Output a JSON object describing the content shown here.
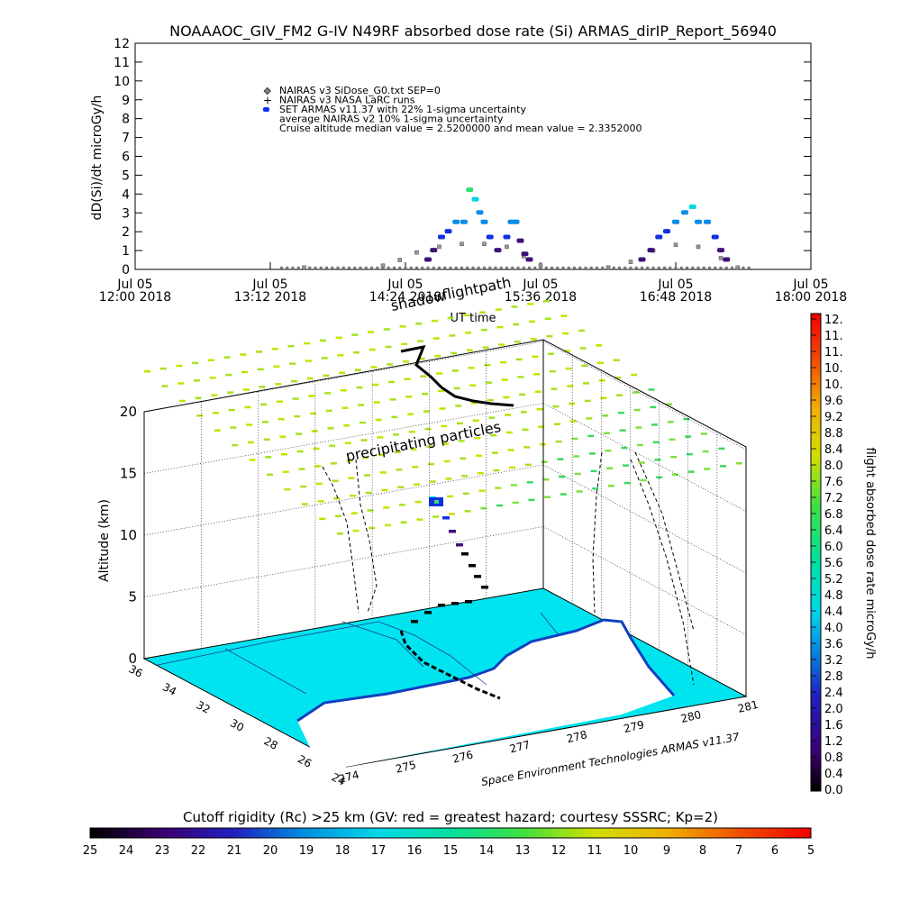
{
  "title": "NOAAAOC_GIV_FM2 G-IV   N49RF  absorbed dose rate (Si) ARMAS_dirIP_Report_56940",
  "chart_data": [
    {
      "type": "scatter",
      "ylabel": "dD(Si)/dt microGy/h",
      "xlabel": "UT time",
      "ylim": [
        0,
        12
      ],
      "yticks": [
        "0",
        "1",
        "2",
        "3",
        "4",
        "5",
        "6",
        "7",
        "8",
        "9",
        "10",
        "11",
        "12"
      ],
      "xticks": [
        {
          "l1": "Jul 05",
          "l2": "12:00 2018"
        },
        {
          "l1": "Jul 05",
          "l2": "13:12 2018"
        },
        {
          "l1": "Jul 05",
          "l2": "14:24 2018"
        },
        {
          "l1": "Jul 05",
          "l2": "15:36 2018"
        },
        {
          "l1": "Jul 05",
          "l2": "16:48 2018"
        },
        {
          "l1": "Jul 05",
          "l2": "18:00 2018"
        }
      ],
      "legend": [
        "NAIRAS v3 SiDose_G0.txt SEP=0",
        "NAIRAS v3 NASA LaRC runs",
        "SET ARMAS v11.37 with 22% 1-sigma uncertainty",
        "average NAIRAS v2 10% 1-sigma uncertainty",
        "Cruise altitude median value = 2.5200000 and mean value = 2.3352000"
      ],
      "legend_position": "top-left",
      "nairas_baseline": [
        {
          "t": 13.5,
          "v": 0.1
        },
        {
          "t": 14.2,
          "v": 0.2
        },
        {
          "t": 14.35,
          "v": 0.5
        },
        {
          "t": 14.5,
          "v": 0.9
        },
        {
          "t": 14.7,
          "v": 1.2
        },
        {
          "t": 14.9,
          "v": 1.35
        },
        {
          "t": 15.1,
          "v": 1.35
        },
        {
          "t": 15.3,
          "v": 1.2
        },
        {
          "t": 15.45,
          "v": 0.7
        },
        {
          "t": 15.6,
          "v": 0.2
        },
        {
          "t": 16.2,
          "v": 0.1
        },
        {
          "t": 16.4,
          "v": 0.4
        },
        {
          "t": 16.6,
          "v": 1.0
        },
        {
          "t": 16.8,
          "v": 1.3
        },
        {
          "t": 17.0,
          "v": 1.2
        },
        {
          "t": 17.2,
          "v": 0.6
        },
        {
          "t": 17.35,
          "v": 0.1
        }
      ],
      "armas_points": [
        {
          "t": 14.6,
          "v": 0.5
        },
        {
          "t": 14.65,
          "v": 1.0
        },
        {
          "t": 14.72,
          "v": 1.7
        },
        {
          "t": 14.78,
          "v": 2.0
        },
        {
          "t": 14.85,
          "v": 2.5
        },
        {
          "t": 14.92,
          "v": 2.5
        },
        {
          "t": 14.97,
          "v": 4.2
        },
        {
          "t": 15.02,
          "v": 3.7
        },
        {
          "t": 15.06,
          "v": 3.0
        },
        {
          "t": 15.1,
          "v": 2.5
        },
        {
          "t": 15.15,
          "v": 1.7
        },
        {
          "t": 15.22,
          "v": 1.0
        },
        {
          "t": 15.3,
          "v": 1.7
        },
        {
          "t": 15.34,
          "v": 2.5
        },
        {
          "t": 15.38,
          "v": 2.5
        },
        {
          "t": 15.42,
          "v": 1.5
        },
        {
          "t": 15.46,
          "v": 0.8
        },
        {
          "t": 15.5,
          "v": 0.5
        },
        {
          "t": 16.5,
          "v": 0.5
        },
        {
          "t": 16.58,
          "v": 1.0
        },
        {
          "t": 16.65,
          "v": 1.7
        },
        {
          "t": 16.72,
          "v": 2.0
        },
        {
          "t": 16.8,
          "v": 2.5
        },
        {
          "t": 16.88,
          "v": 3.0
        },
        {
          "t": 16.95,
          "v": 3.3
        },
        {
          "t": 17.0,
          "v": 2.5
        },
        {
          "t": 17.08,
          "v": 2.5
        },
        {
          "t": 17.15,
          "v": 1.7
        },
        {
          "t": 17.2,
          "v": 1.0
        },
        {
          "t": 17.25,
          "v": 0.5
        }
      ]
    },
    {
      "type": "scatter",
      "zlabel": "Altitude (km)",
      "zticks": [
        "0",
        "5",
        "10",
        "15",
        "20"
      ],
      "lat_ticks": [
        "36",
        "34",
        "32",
        "30",
        "28",
        "26",
        "24"
      ],
      "lon_ticks": [
        "274",
        "275",
        "276",
        "277",
        "278",
        "279",
        "280",
        "281"
      ],
      "annotations": {
        "shadow": "shadow",
        "flightpath": "flightpath",
        "precip": "precipitating particles",
        "credit": "Space Environment Technologies ARMAS v11.37"
      },
      "colorbar": {
        "label": "flight absorbed dose rate microGy/h",
        "ticks": [
          "12.",
          "11.",
          "11.",
          "10.",
          "10.",
          "9.6",
          "9.2",
          "8.8",
          "8.4",
          "8.0",
          "7.6",
          "7.2",
          "6.8",
          "6.4",
          "6.0",
          "5.6",
          "5.2",
          "4.8",
          "4.4",
          "4.0",
          "3.6",
          "3.2",
          "2.8",
          "2.4",
          "2.0",
          "1.6",
          "1.2",
          "0.8",
          "0.4",
          "0.0"
        ]
      },
      "hcolorbar": {
        "label": "Cutoff rigidity (Rc) >25 km (GV: red = greatest hazard; courtesy SSSRC; Kp=2)",
        "ticks": [
          "25",
          "24",
          "23",
          "22",
          "21",
          "20",
          "19",
          "18",
          "17",
          "16",
          "15",
          "14",
          "13",
          "12",
          "11",
          "10",
          "9",
          "8",
          "7",
          "6",
          "5"
        ]
      },
      "colors": {
        "land": "#00e4f0",
        "coast": "#1040c0",
        "cruise_dose": "#40d860"
      }
    }
  ]
}
